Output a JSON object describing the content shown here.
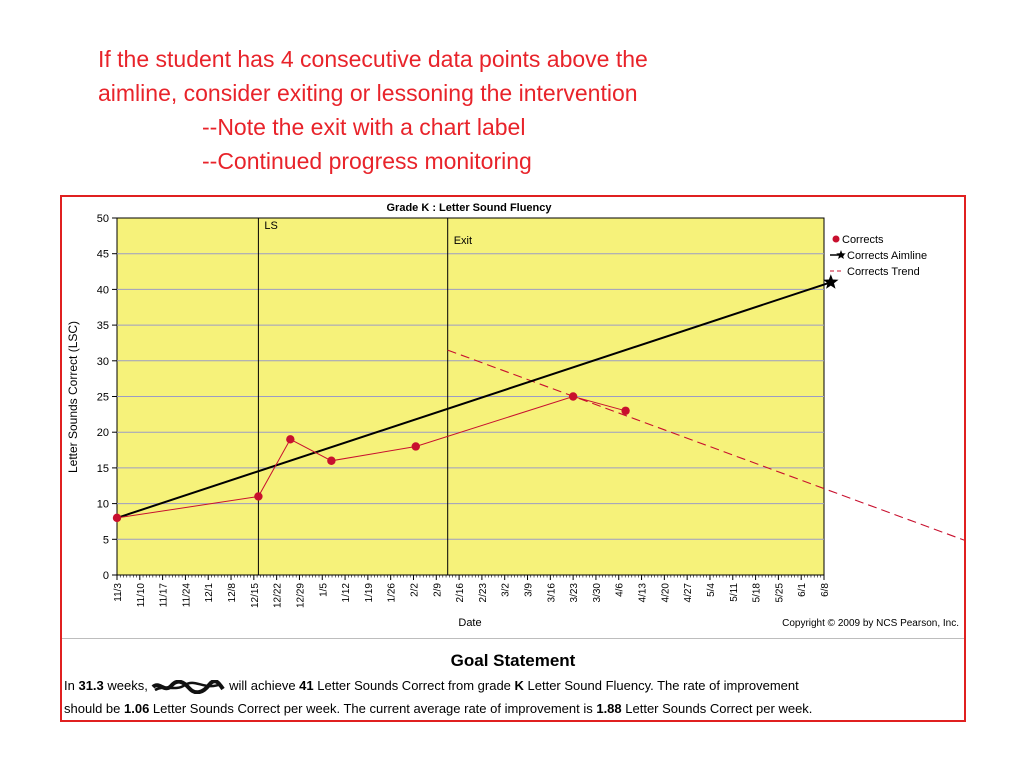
{
  "slide": {
    "line1": "If the student has 4 consecutive data points above the",
    "line2": "aimline, consider exiting or lessoning the intervention",
    "line3": "--Note the exit with a chart label",
    "line4": "--Continued progress monitoring",
    "text_color": "#e8232a"
  },
  "chart_data": {
    "type": "line",
    "title": "Grade K : Letter Sound Fluency",
    "xlabel": "Date",
    "ylabel": "Letter Sounds Correct (LSC)",
    "ylim": [
      0,
      50
    ],
    "yticks": [
      0,
      5,
      10,
      15,
      20,
      25,
      30,
      35,
      40,
      45,
      50
    ],
    "xticks": [
      "11/3",
      "11/10",
      "11/17",
      "11/24",
      "12/1",
      "12/8",
      "12/15",
      "12/22",
      "12/29",
      "1/5",
      "1/12",
      "1/19",
      "1/26",
      "2/2",
      "2/9",
      "2/16",
      "2/23",
      "3/2",
      "3/9",
      "3/16",
      "3/23",
      "3/30",
      "4/6",
      "4/13",
      "4/20",
      "4/27",
      "5/4",
      "5/11",
      "5/18",
      "5/25",
      "6/1",
      "6/8"
    ],
    "x_axis_unit": "weeks from 11/3",
    "grid": true,
    "background_color": "#f6f27a",
    "legend_position": "right",
    "legend": [
      "Corrects",
      "Corrects Aimline",
      "Corrects Trend"
    ],
    "series": [
      {
        "name": "Corrects",
        "color": "#c8102e",
        "points": [
          [
            0,
            8
          ],
          [
            6.2,
            11
          ],
          [
            7.6,
            19
          ],
          [
            9.4,
            16
          ],
          [
            13.1,
            18
          ],
          [
            20.0,
            25
          ],
          [
            22.3,
            23
          ]
        ]
      },
      {
        "name": "Corrects Aimline",
        "color": "#000000",
        "points": [
          [
            0,
            8
          ],
          [
            31.3,
            41
          ]
        ]
      },
      {
        "name": "Corrects Trend",
        "color": "#c8102e",
        "style": "dashed",
        "points": [
          [
            14.5,
            31.5
          ],
          [
            41.3,
            0
          ]
        ]
      }
    ],
    "vertical_lines": [
      {
        "label": "LS",
        "x": 6.2
      },
      {
        "label": "Exit",
        "x": 14.5
      }
    ],
    "copyright": "Copyright © 2009 by NCS Pearson, Inc."
  },
  "goal": {
    "title": "Goal Statement",
    "l1_a": "In ",
    "weeks": "31.3",
    "l1_b": " weeks, ",
    "l1_c": " will achieve ",
    "target": "41",
    "l1_d": " Letter Sounds Correct from grade ",
    "grade": "K",
    "l1_e": " Letter Sound Fluency.  The rate of improvement",
    "l2_a": "should be ",
    "roi_target": "1.06",
    "l2_b": " Letter Sounds Correct per week. The current average rate of improvement is ",
    "roi_current": "1.88",
    "l2_c": " Letter Sounds Correct per week."
  }
}
